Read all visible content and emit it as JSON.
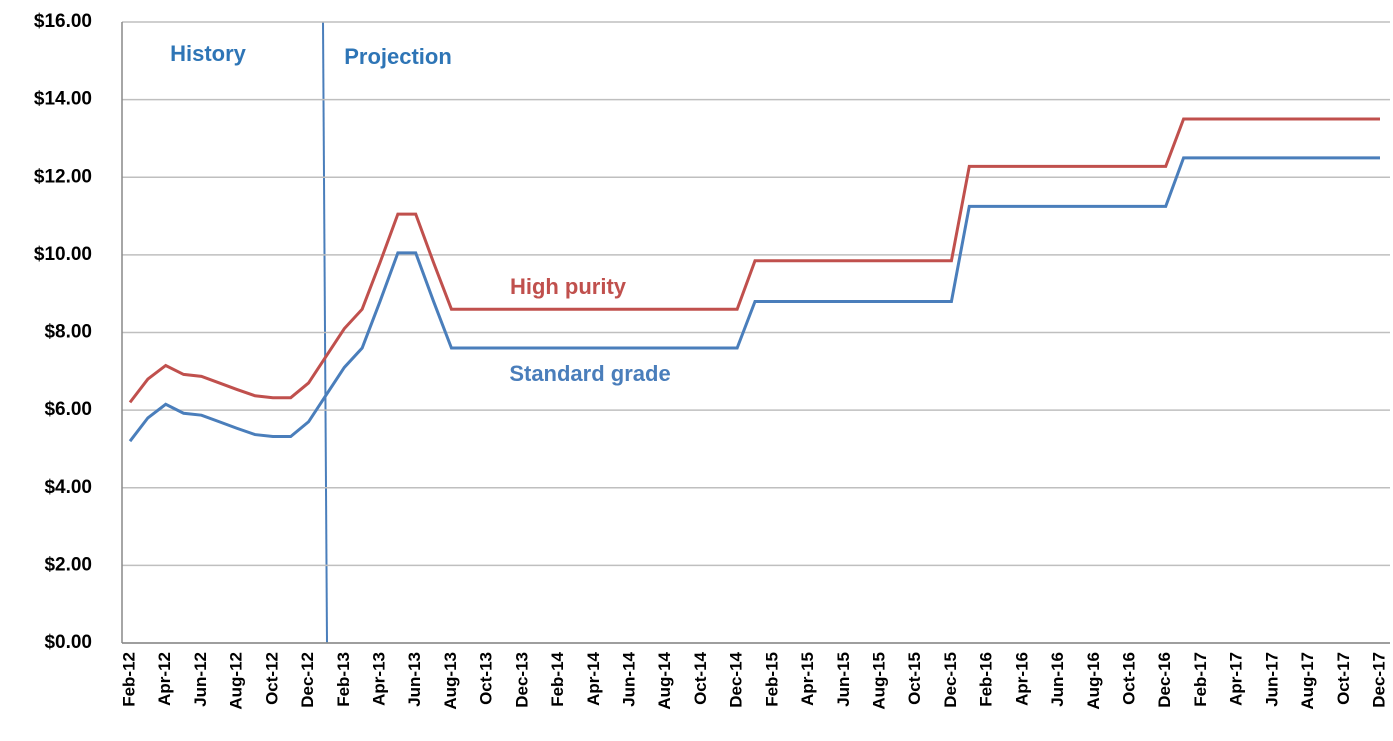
{
  "chart_data": {
    "type": "line",
    "categories": [
      "Feb-12",
      null,
      "Apr-12",
      null,
      "Jun-12",
      null,
      "Aug-12",
      null,
      "Oct-12",
      null,
      "Dec-12",
      null,
      "Feb-13",
      null,
      "Apr-13",
      null,
      "Jun-13",
      null,
      "Aug-13",
      null,
      "Oct-13",
      null,
      "Dec-13",
      null,
      "Feb-14",
      null,
      "Apr-14",
      null,
      "Jun-14",
      null,
      "Aug-14",
      null,
      "Oct-14",
      null,
      "Dec-14",
      null,
      "Feb-15",
      null,
      "Apr-15",
      null,
      "Jun-15",
      null,
      "Aug-15",
      null,
      "Oct-15",
      null,
      "Dec-15",
      null,
      "Feb-16",
      null,
      "Apr-16",
      null,
      "Jun-16",
      null,
      "Aug-16",
      null,
      "Oct-16",
      null,
      "Dec-16",
      null,
      "Feb-17",
      null,
      "Apr-17",
      null,
      "Jun-17",
      null,
      "Aug-17",
      null,
      "Oct-17",
      null,
      "Dec-17"
    ],
    "series": [
      {
        "name": "High purity",
        "color": "#c0504d",
        "values": [
          6.2,
          6.8,
          7.15,
          6.92,
          6.87,
          6.7,
          6.53,
          6.37,
          6.32,
          6.32,
          6.7,
          7.4,
          8.1,
          8.6,
          9.8,
          11.05,
          11.05,
          9.8,
          8.6,
          8.6,
          8.6,
          8.6,
          8.6,
          8.6,
          8.6,
          8.6,
          8.6,
          8.6,
          8.6,
          8.6,
          8.6,
          8.6,
          8.6,
          8.6,
          8.6,
          9.85,
          9.85,
          9.85,
          9.85,
          9.85,
          9.85,
          9.85,
          9.85,
          9.85,
          9.85,
          9.85,
          9.85,
          12.28,
          12.28,
          12.28,
          12.28,
          12.28,
          12.28,
          12.28,
          12.28,
          12.28,
          12.28,
          12.28,
          12.28,
          13.5,
          13.5,
          13.5,
          13.5,
          13.5,
          13.5,
          13.5,
          13.5,
          13.5,
          13.5,
          13.5,
          13.5
        ]
      },
      {
        "name": "Standard grade",
        "color": "#4a7ebb",
        "values": [
          5.2,
          5.8,
          6.15,
          5.92,
          5.87,
          5.7,
          5.53,
          5.37,
          5.32,
          5.32,
          5.7,
          6.4,
          7.1,
          7.6,
          8.8,
          10.05,
          10.05,
          8.8,
          7.6,
          7.6,
          7.6,
          7.6,
          7.6,
          7.6,
          7.6,
          7.6,
          7.6,
          7.6,
          7.6,
          7.6,
          7.6,
          7.6,
          7.6,
          7.6,
          7.6,
          8.8,
          8.8,
          8.8,
          8.8,
          8.8,
          8.8,
          8.8,
          8.8,
          8.8,
          8.8,
          8.8,
          8.8,
          11.25,
          11.25,
          11.25,
          11.25,
          11.25,
          11.25,
          11.25,
          11.25,
          11.25,
          11.25,
          11.25,
          11.25,
          12.5,
          12.5,
          12.5,
          12.5,
          12.5,
          12.5,
          12.5,
          12.5,
          12.5,
          12.5,
          12.5,
          12.5
        ]
      }
    ],
    "annotations": [
      "History",
      "Projection"
    ],
    "ylim": [
      0,
      16
    ],
    "yticks": [
      {
        "value": 0,
        "label": "$0.00"
      },
      {
        "value": 2,
        "label": "$2.00"
      },
      {
        "value": 4,
        "label": "$4.00"
      },
      {
        "value": 6,
        "label": "$6.00"
      },
      {
        "value": 8,
        "label": "$8.00"
      },
      {
        "value": 10,
        "label": "$10.00"
      },
      {
        "value": 12,
        "label": "$12.00"
      },
      {
        "value": 14,
        "label": "$14.00"
      },
      {
        "value": 16,
        "label": "$16.00"
      }
    ],
    "grid": true
  }
}
